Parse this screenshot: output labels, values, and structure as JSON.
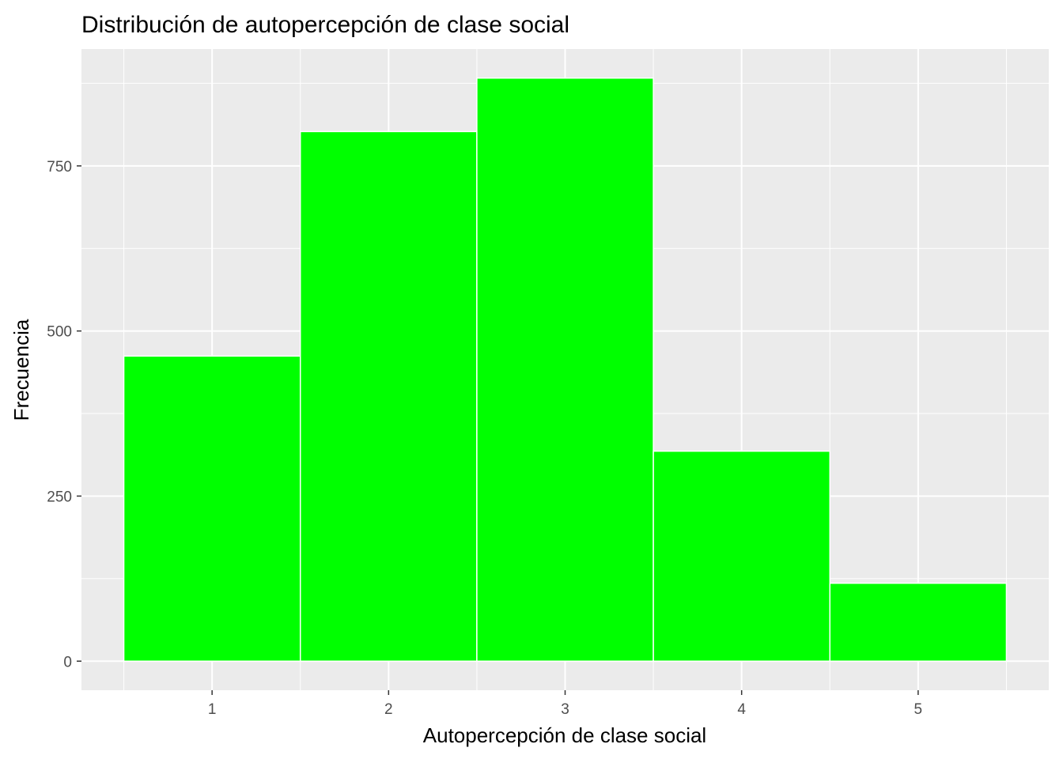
{
  "chart_data": {
    "type": "bar",
    "title": "Distribución de autopercepción de clase social",
    "xlabel": "Autopercepción de clase social",
    "ylabel": "Frecuencia",
    "categories": [
      "1",
      "2",
      "3",
      "4",
      "5"
    ],
    "x": [
      1,
      2,
      3,
      4,
      5
    ],
    "values": [
      462,
      802,
      883,
      318,
      118
    ],
    "xlim": [
      0.26,
      5.74
    ],
    "ylim": [
      -44,
      927
    ],
    "y_ticks": [
      0,
      250,
      500,
      750
    ],
    "y_tick_labels": [
      "0",
      "250",
      "500",
      "750"
    ],
    "grid": true,
    "legend": "none",
    "colors": {
      "bar_fill": "#00ff00",
      "bar_outline": "#ffffff",
      "panel_background": "#ebebeb",
      "grid": "#ffffff",
      "tick_label": "#4d4d4d",
      "tick_mark": "#333333"
    }
  }
}
